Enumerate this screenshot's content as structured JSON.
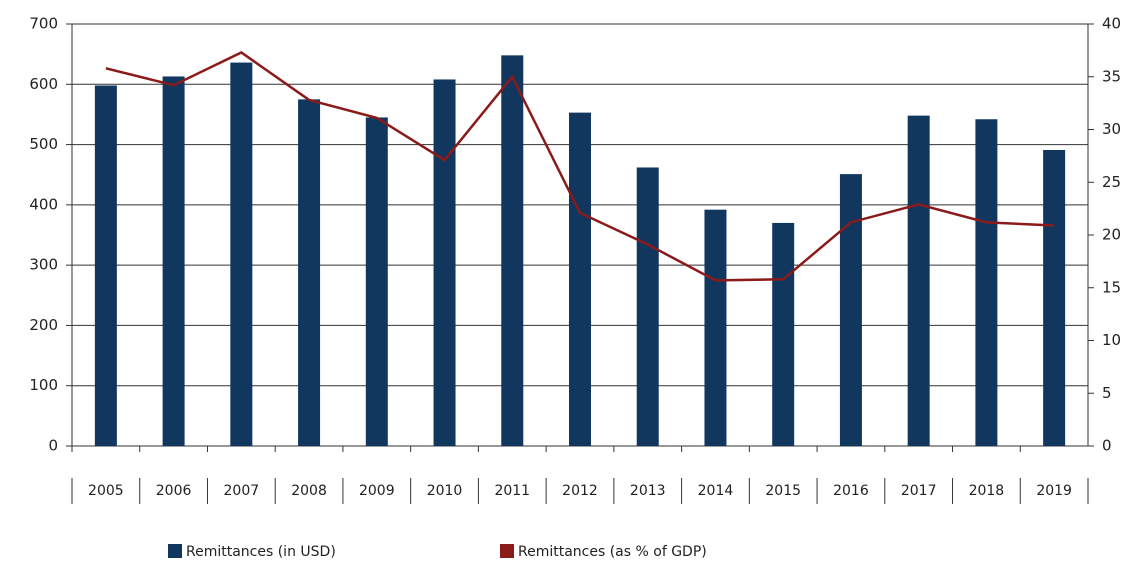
{
  "chart_data": {
    "type": "bar_line",
    "categories": [
      "2005",
      "2006",
      "2007",
      "2008",
      "2009",
      "2010",
      "2011",
      "2012",
      "2013",
      "2014",
      "2015",
      "2016",
      "2017",
      "2018",
      "2019"
    ],
    "series": [
      {
        "name": "Remittances (in USD)",
        "color": "#12375f",
        "type": "bar",
        "values": [
          598,
          613,
          636,
          575,
          545,
          608,
          648,
          553,
          462,
          392,
          370,
          451,
          548,
          542,
          491
        ]
      },
      {
        "name": "Remittances (as % of GDP)",
        "color": "#8b1a1a",
        "type": "line",
        "axis": "y2",
        "values": [
          35.8,
          34.2,
          37.3,
          32.8,
          31.1,
          27.1,
          35.0,
          22.1,
          19.1,
          15.7,
          15.8,
          21.2,
          22.9,
          21.2,
          20.9
        ]
      }
    ],
    "ylim": [
      0,
      700
    ],
    "yticks": [
      0,
      100,
      200,
      300,
      400,
      500,
      600,
      700
    ],
    "y2lim": [
      0,
      40
    ],
    "y2ticks": [
      0,
      5,
      10,
      15,
      20,
      25,
      30,
      35,
      40
    ],
    "grid": true
  }
}
